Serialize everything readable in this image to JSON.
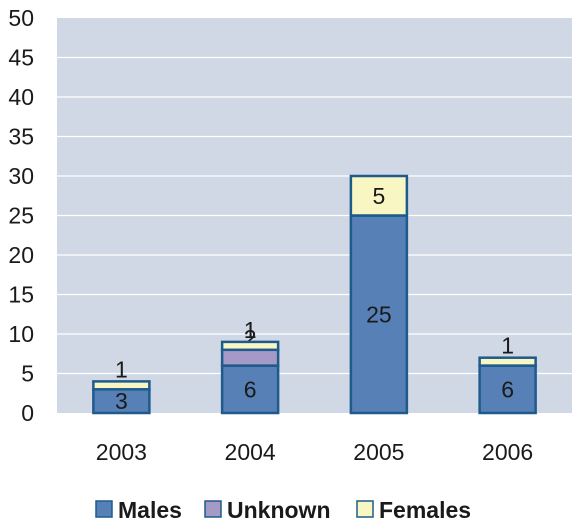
{
  "chart_data": {
    "type": "bar",
    "stacked": true,
    "categories": [
      "2003",
      "2004",
      "2005",
      "2006"
    ],
    "series": [
      {
        "name": "Males",
        "values": [
          3,
          6,
          25,
          6
        ],
        "color": "#5680b6",
        "labels": [
          "3",
          "6",
          "25",
          "6"
        ]
      },
      {
        "name": "Unknown",
        "values": [
          0,
          2,
          0,
          0
        ],
        "color": "#a599c6",
        "labels": [
          "",
          "2",
          "",
          ""
        ]
      },
      {
        "name": "Females",
        "values": [
          1,
          1,
          5,
          1
        ],
        "color": "#f8f6c2",
        "labels": [
          "1",
          "1",
          "5",
          "1"
        ]
      }
    ],
    "ylim": [
      0,
      50
    ],
    "yticks": [
      "0",
      "5",
      "10",
      "15",
      "20",
      "25",
      "30",
      "35",
      "40",
      "45",
      "50"
    ],
    "grid": true,
    "legend": "bottom",
    "colors": {
      "plot_bg": "#cfd8e4",
      "gridline": "#ffffff",
      "bar_edge": "#1e5b8c"
    }
  }
}
